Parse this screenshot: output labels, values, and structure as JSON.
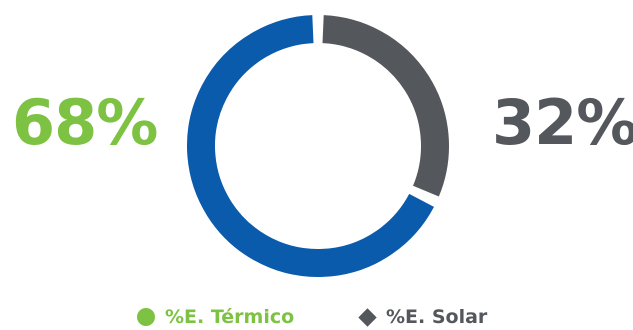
{
  "chart_data": {
    "type": "pie",
    "variant": "donut",
    "title": "",
    "series": [
      {
        "name": "%E. Térmico",
        "value": 68,
        "label": "68%",
        "ring_color": "#0b5bad",
        "text_color": "#7dc242",
        "legend_marker": "circle"
      },
      {
        "name": "%E. Solar",
        "value": 32,
        "label": "32%",
        "ring_color": "#54575c",
        "text_color": "#54575c",
        "legend_marker": "diamond"
      }
    ],
    "legend_position": "bottom-center",
    "start_angle": "top",
    "direction": "counterclockwise-from-top-for-first-series"
  },
  "legend": {
    "markers": {
      "circle": "#7dc242",
      "diamond": "#54575c"
    }
  }
}
